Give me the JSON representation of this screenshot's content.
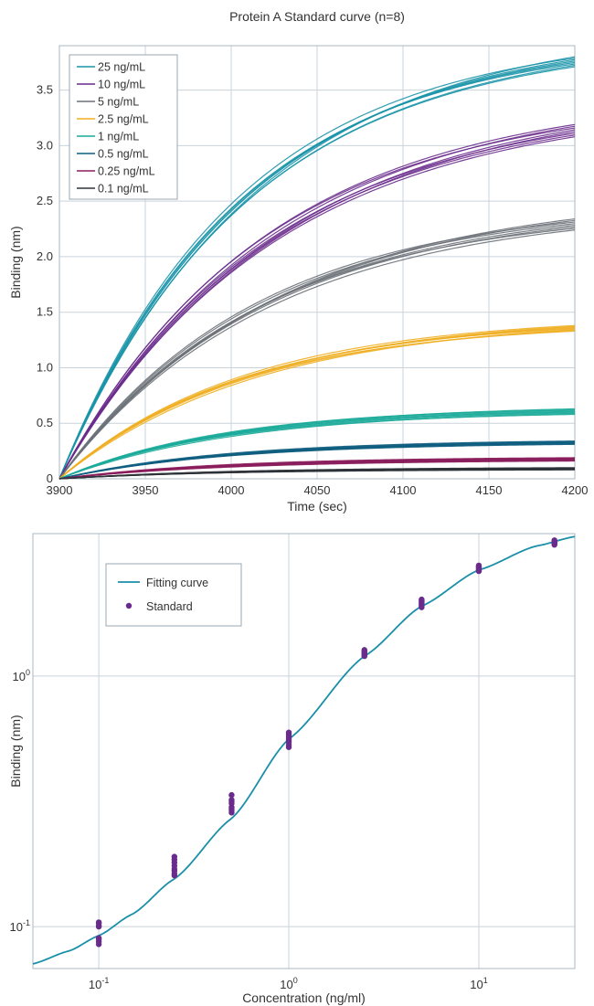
{
  "charts": [
    {
      "id": "kinetics",
      "type": "line",
      "title": "Protein A Standard curve (n=8)",
      "xlabel": "Time (sec)",
      "ylabel": "Binding (nm)",
      "xlim": [
        3900,
        4200
      ],
      "ylim": [
        0,
        3.9
      ],
      "x_ticks": [
        3900,
        3950,
        4000,
        4050,
        4100,
        4150,
        4200
      ],
      "x_tick_labels": [
        "3900",
        "3950",
        "4000",
        "4050",
        "4100",
        "4150",
        "4200"
      ],
      "y_ticks": [
        0,
        0.5,
        1.0,
        1.5,
        2.0,
        2.5,
        3.0,
        3.5
      ],
      "y_tick_labels": [
        "0",
        "0.5",
        "1.0",
        "1.5",
        "2.0",
        "2.5",
        "3.0",
        "3.5"
      ],
      "grid": true,
      "legend_position": "top-left",
      "replicates": 8,
      "series": [
        {
          "name": "25 ng/mL",
          "color": "#1a93a8",
          "final_values_min_max": [
            3.71,
            3.8
          ],
          "time_constant_sec": 110
        },
        {
          "name": "10 ng/mL",
          "color": "#6a2c8c",
          "final_values_min_max": [
            3.08,
            3.19
          ],
          "time_constant_sec": 125
        },
        {
          "name": "5 ng/mL",
          "color": "#6b7178",
          "final_values_min_max": [
            2.24,
            2.34
          ],
          "time_constant_sec": 120
        },
        {
          "name": "2.5 ng/mL",
          "color": "#f0ae21",
          "final_values_min_max": [
            1.33,
            1.38
          ],
          "time_constant_sec": 110
        },
        {
          "name": "1 ng/mL",
          "color": "#1aaa99",
          "final_values_min_max": [
            0.58,
            0.63
          ],
          "time_constant_sec": 100
        },
        {
          "name": "0.5 ng/mL",
          "color": "#0f5e80",
          "final_values_min_max": [
            0.31,
            0.34
          ],
          "time_constant_sec": 100
        },
        {
          "name": "0.25 ng/mL",
          "color": "#8a1d5c",
          "final_values_min_max": [
            0.16,
            0.19
          ],
          "time_constant_sec": 100
        },
        {
          "name": "0.1 ng/mL",
          "color": "#2e3338",
          "final_values_min_max": [
            0.08,
            0.1
          ],
          "time_constant_sec": 100
        }
      ]
    },
    {
      "id": "standard-curve",
      "type": "scatter",
      "title": "",
      "xlabel": "Concentration (ng/ml)",
      "ylabel": "Binding (nm)",
      "x_scale": "log",
      "y_scale": "log",
      "xlim": [
        0.045,
        32
      ],
      "ylim": [
        0.068,
        3.7
      ],
      "x_ticks": [
        0.1,
        1,
        10
      ],
      "x_tick_labels": [
        {
          "base": "10",
          "exp": "-1"
        },
        {
          "base": "10",
          "exp": "0"
        },
        {
          "base": "10",
          "exp": "1"
        }
      ],
      "y_ticks": [
        0.1,
        1
      ],
      "y_tick_labels": [
        {
          "base": "10",
          "exp": "-1"
        },
        {
          "base": "10",
          "exp": "0"
        }
      ],
      "grid": true,
      "legend_position": "top-left",
      "legend": {
        "fit_label": "Fitting curve",
        "points_label": "Standard"
      },
      "fit_color": "#1a8fa8",
      "point_color": "#6a2c8c",
      "fit_curve": {
        "x": [
          0.045,
          0.07,
          0.1,
          0.15,
          0.25,
          0.5,
          1,
          2.5,
          5,
          10,
          20,
          32
        ],
        "y": [
          0.071,
          0.08,
          0.092,
          0.112,
          0.155,
          0.27,
          0.56,
          1.2,
          1.9,
          2.65,
          3.3,
          3.6
        ]
      },
      "standards": [
        {
          "x": 0.1,
          "y": [
            0.085,
            0.087,
            0.089,
            0.09,
            0.1,
            0.101,
            0.103,
            0.104
          ]
        },
        {
          "x": 0.25,
          "y": [
            0.16,
            0.163,
            0.167,
            0.17,
            0.175,
            0.18,
            0.185,
            0.19
          ]
        },
        {
          "x": 0.5,
          "y": [
            0.285,
            0.29,
            0.295,
            0.3,
            0.31,
            0.315,
            0.32,
            0.335
          ]
        },
        {
          "x": 1,
          "y": [
            0.52,
            0.53,
            0.545,
            0.555,
            0.565,
            0.575,
            0.585,
            0.595
          ]
        },
        {
          "x": 2.5,
          "y": [
            1.2,
            1.21,
            1.22,
            1.23,
            1.24,
            1.25,
            1.26,
            1.27
          ]
        },
        {
          "x": 5,
          "y": [
            1.88,
            1.9,
            1.92,
            1.94,
            1.96,
            1.98,
            2.0,
            2.02
          ]
        },
        {
          "x": 10,
          "y": [
            2.62,
            2.64,
            2.66,
            2.68,
            2.7,
            2.72,
            2.74,
            2.76
          ]
        },
        {
          "x": 25,
          "y": [
            3.34,
            3.36,
            3.38,
            3.4,
            3.42,
            3.44,
            3.46,
            3.48
          ]
        }
      ]
    }
  ]
}
